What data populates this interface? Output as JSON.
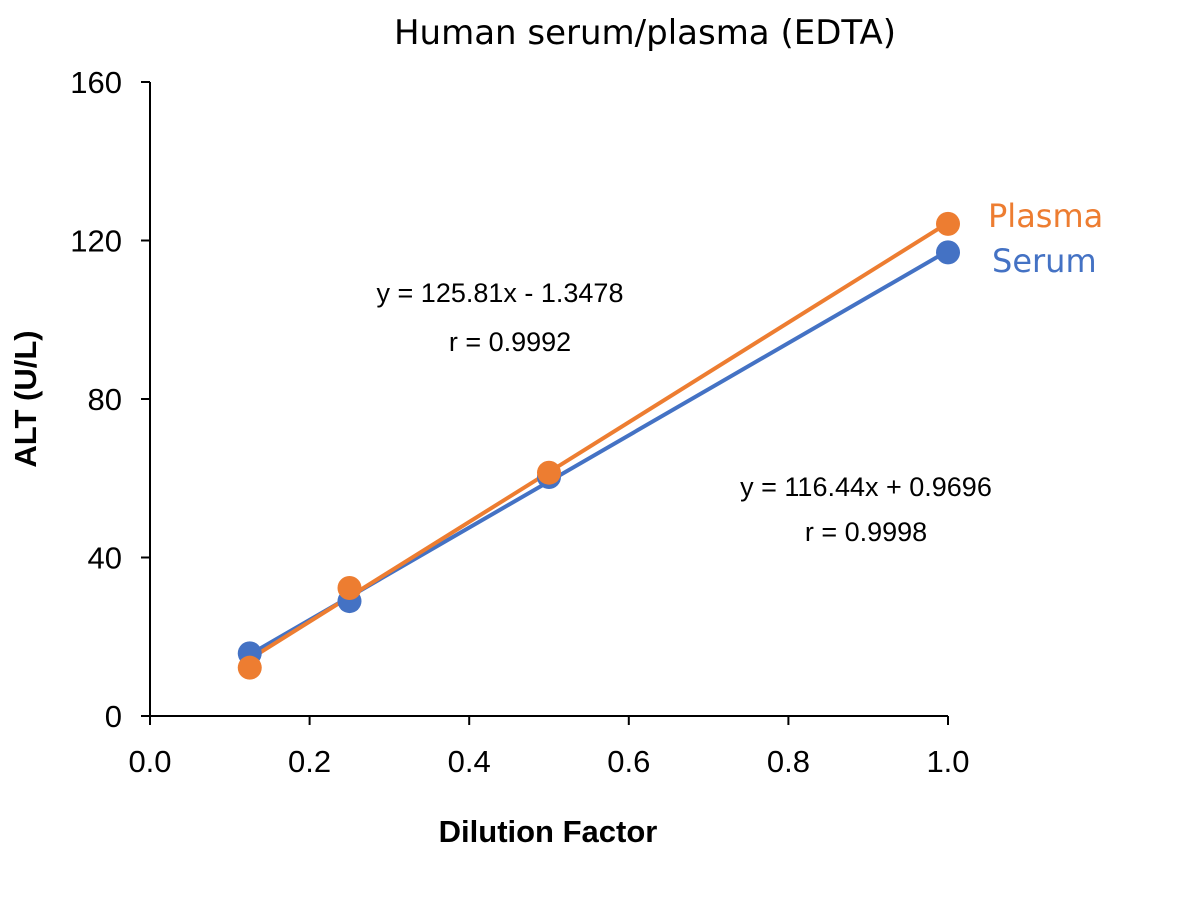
{
  "chart_data": {
    "type": "scatter",
    "title": "Human serum/plasma (EDTA)",
    "xlabel": "Dilution Factor",
    "ylabel": "ALT (U/L)",
    "xlim": [
      0,
      1
    ],
    "ylim": [
      0,
      160
    ],
    "x_ticks": [
      0,
      0.2,
      0.4,
      0.6,
      0.8,
      1.0
    ],
    "x_tick_labels": [
      "0.0",
      "0.2",
      "0.4",
      "0.6",
      "0.8",
      "1.0"
    ],
    "y_ticks": [
      0,
      40,
      80,
      120,
      160
    ],
    "y_tick_labels": [
      "0",
      "40",
      "80",
      "120",
      "160"
    ],
    "grid": false,
    "series": [
      {
        "name": "Serum",
        "color": "#4472C4",
        "points": [
          {
            "x": 0.125,
            "y": 15.8
          },
          {
            "x": 0.25,
            "y": 29.0
          },
          {
            "x": 0.5,
            "y": 60.3
          },
          {
            "x": 1.0,
            "y": 117.0
          }
        ],
        "trendline": {
          "slope": 116.44,
          "intercept": 0.9696
        },
        "equation": "y = 116.44x + 0.9696",
        "r": "r = 0.9998"
      },
      {
        "name": "Plasma",
        "color": "#ED7D31",
        "points": [
          {
            "x": 0.125,
            "y": 12.2
          },
          {
            "x": 0.25,
            "y": 32.3
          },
          {
            "x": 0.5,
            "y": 61.4
          },
          {
            "x": 1.0,
            "y": 124.2
          }
        ],
        "trendline": {
          "slope": 125.81,
          "intercept": -1.3478
        },
        "equation": "y = 125.81x - 1.3478",
        "r": "r = 0.9992"
      }
    ]
  }
}
